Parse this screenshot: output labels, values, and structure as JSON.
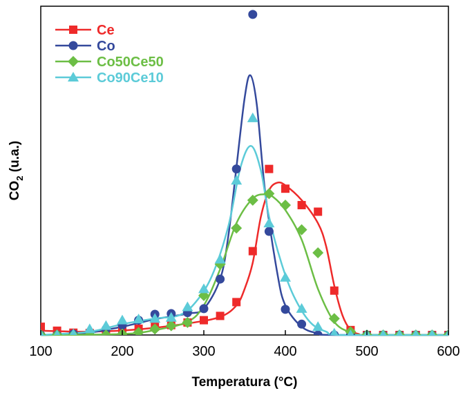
{
  "chart_data": {
    "type": "line",
    "title": "",
    "xlabel": "Temperatura (°C)",
    "ylabel": {
      "main": "CO",
      "sub": "2",
      "tail": " (u.a.)"
    },
    "xlim": [
      100,
      600
    ],
    "ylim": [
      0,
      100
    ],
    "x_ticks": [
      100,
      200,
      300,
      400,
      500,
      600
    ],
    "y_ticks_shown": false,
    "legend_position": "top-left",
    "series": [
      {
        "name": "Ce",
        "color": "#ee2a2a",
        "marker": "square",
        "points": [
          [
            100,
            2.5
          ],
          [
            120,
            1.3
          ],
          [
            140,
            0.7
          ],
          [
            160,
            0.6
          ],
          [
            180,
            0.8
          ],
          [
            200,
            1.3
          ],
          [
            220,
            1.9
          ],
          [
            240,
            2.5
          ],
          [
            260,
            3.0
          ],
          [
            280,
            3.8
          ],
          [
            300,
            4.5
          ],
          [
            320,
            5.8
          ],
          [
            340,
            10.0
          ],
          [
            360,
            25.5
          ],
          [
            380,
            50.5
          ],
          [
            400,
            44.5
          ],
          [
            420,
            39.5
          ],
          [
            440,
            37.5
          ],
          [
            460,
            13.5
          ],
          [
            480,
            1.5
          ],
          [
            500,
            0.0
          ],
          [
            520,
            0.0
          ],
          [
            540,
            0.0
          ],
          [
            560,
            0.0
          ],
          [
            580,
            0.0
          ],
          [
            600,
            0.0
          ]
        ],
        "fit": [
          [
            100,
            1.3
          ],
          [
            160,
            1.0
          ],
          [
            220,
            1.7
          ],
          [
            280,
            3.5
          ],
          [
            320,
            5.5
          ],
          [
            340,
            9.0
          ],
          [
            350,
            14.0
          ],
          [
            360,
            22.0
          ],
          [
            370,
            36.0
          ],
          [
            380,
            44.0
          ],
          [
            390,
            46.3
          ],
          [
            400,
            45.5
          ],
          [
            420,
            41.0
          ],
          [
            440,
            34.0
          ],
          [
            450,
            27.0
          ],
          [
            460,
            15.0
          ],
          [
            470,
            6.0
          ],
          [
            480,
            1.5
          ],
          [
            490,
            0.3
          ],
          [
            500,
            0.0
          ],
          [
            600,
            0.0
          ]
        ]
      },
      {
        "name": "Co",
        "color": "#34499c",
        "marker": "circle",
        "points": [
          [
            100,
            0.0
          ],
          [
            120,
            0.0
          ],
          [
            140,
            0.3
          ],
          [
            160,
            0.8
          ],
          [
            180,
            1.8
          ],
          [
            200,
            3.0
          ],
          [
            220,
            4.5
          ],
          [
            240,
            6.3
          ],
          [
            260,
            6.5
          ],
          [
            280,
            6.8
          ],
          [
            300,
            8.0
          ],
          [
            320,
            17.0
          ],
          [
            340,
            50.5
          ],
          [
            360,
            97.5
          ],
          [
            380,
            31.5
          ],
          [
            400,
            7.8
          ],
          [
            420,
            3.3
          ],
          [
            440,
            0.0
          ],
          [
            460,
            0.0
          ],
          [
            480,
            0.0
          ],
          [
            500,
            0.0
          ],
          [
            520,
            0.0
          ],
          [
            540,
            0.0
          ],
          [
            560,
            0.0
          ],
          [
            580,
            0.0
          ],
          [
            600,
            0.0
          ]
        ],
        "fit": [
          [
            100,
            0.0
          ],
          [
            150,
            0.4
          ],
          [
            200,
            2.5
          ],
          [
            240,
            4.8
          ],
          [
            280,
            6.5
          ],
          [
            300,
            8.0
          ],
          [
            320,
            17.0
          ],
          [
            330,
            30.0
          ],
          [
            340,
            51.0
          ],
          [
            350,
            72.0
          ],
          [
            357,
            79.0
          ],
          [
            365,
            70.0
          ],
          [
            375,
            44.0
          ],
          [
            390,
            19.0
          ],
          [
            400,
            9.0
          ],
          [
            420,
            2.5
          ],
          [
            440,
            0.5
          ],
          [
            460,
            0.0
          ],
          [
            600,
            0.0
          ]
        ]
      },
      {
        "name": "Co50Ce50",
        "color": "#6cbe45",
        "marker": "diamond",
        "points": [
          [
            100,
            0.0
          ],
          [
            120,
            0.0
          ],
          [
            140,
            0.0
          ],
          [
            160,
            0.0
          ],
          [
            180,
            0.0
          ],
          [
            200,
            0.3
          ],
          [
            220,
            0.8
          ],
          [
            240,
            1.8
          ],
          [
            260,
            2.8
          ],
          [
            280,
            3.8
          ],
          [
            300,
            12.0
          ],
          [
            320,
            21.5
          ],
          [
            340,
            32.5
          ],
          [
            360,
            41.0
          ],
          [
            380,
            43.0
          ],
          [
            400,
            39.5
          ],
          [
            420,
            32.0
          ],
          [
            440,
            25.0
          ],
          [
            460,
            5.0
          ],
          [
            480,
            1.0
          ],
          [
            500,
            0.0
          ],
          [
            520,
            0.0
          ],
          [
            540,
            0.0
          ],
          [
            560,
            0.0
          ],
          [
            580,
            0.0
          ],
          [
            600,
            0.0
          ]
        ],
        "fit": [
          [
            100,
            0.0
          ],
          [
            200,
            0.3
          ],
          [
            240,
            1.5
          ],
          [
            280,
            4.0
          ],
          [
            300,
            9.0
          ],
          [
            320,
            20.0
          ],
          [
            340,
            34.0
          ],
          [
            360,
            41.5
          ],
          [
            375,
            42.8
          ],
          [
            385,
            42.0
          ],
          [
            400,
            38.0
          ],
          [
            420,
            29.0
          ],
          [
            440,
            14.0
          ],
          [
            460,
            4.0
          ],
          [
            480,
            0.8
          ],
          [
            500,
            0.0
          ],
          [
            600,
            0.0
          ]
        ]
      },
      {
        "name": "Co90Ce10",
        "color": "#5ccbd8",
        "marker": "triangle",
        "points": [
          [
            100,
            0.0
          ],
          [
            120,
            0.0
          ],
          [
            140,
            0.3
          ],
          [
            160,
            1.8
          ],
          [
            180,
            2.8
          ],
          [
            200,
            4.5
          ],
          [
            220,
            4.8
          ],
          [
            240,
            5.0
          ],
          [
            260,
            5.3
          ],
          [
            280,
            8.5
          ],
          [
            300,
            14.0
          ],
          [
            320,
            23.0
          ],
          [
            340,
            47.0
          ],
          [
            360,
            66.0
          ],
          [
            380,
            34.0
          ],
          [
            400,
            17.5
          ],
          [
            420,
            8.0
          ],
          [
            440,
            2.5
          ],
          [
            460,
            0.5
          ],
          [
            480,
            0.0
          ],
          [
            500,
            0.0
          ],
          [
            520,
            0.0
          ],
          [
            540,
            0.0
          ],
          [
            560,
            0.0
          ],
          [
            580,
            0.0
          ],
          [
            600,
            0.0
          ]
        ],
        "fit": [
          [
            100,
            0.0
          ],
          [
            160,
            1.0
          ],
          [
            200,
            3.3
          ],
          [
            240,
            5.0
          ],
          [
            270,
            6.0
          ],
          [
            290,
            10.0
          ],
          [
            310,
            18.0
          ],
          [
            330,
            33.0
          ],
          [
            345,
            51.0
          ],
          [
            358,
            57.5
          ],
          [
            370,
            50.0
          ],
          [
            380,
            36.0
          ],
          [
            395,
            22.0
          ],
          [
            410,
            12.0
          ],
          [
            430,
            4.0
          ],
          [
            450,
            1.0
          ],
          [
            470,
            0.0
          ],
          [
            600,
            0.0
          ]
        ]
      }
    ]
  }
}
